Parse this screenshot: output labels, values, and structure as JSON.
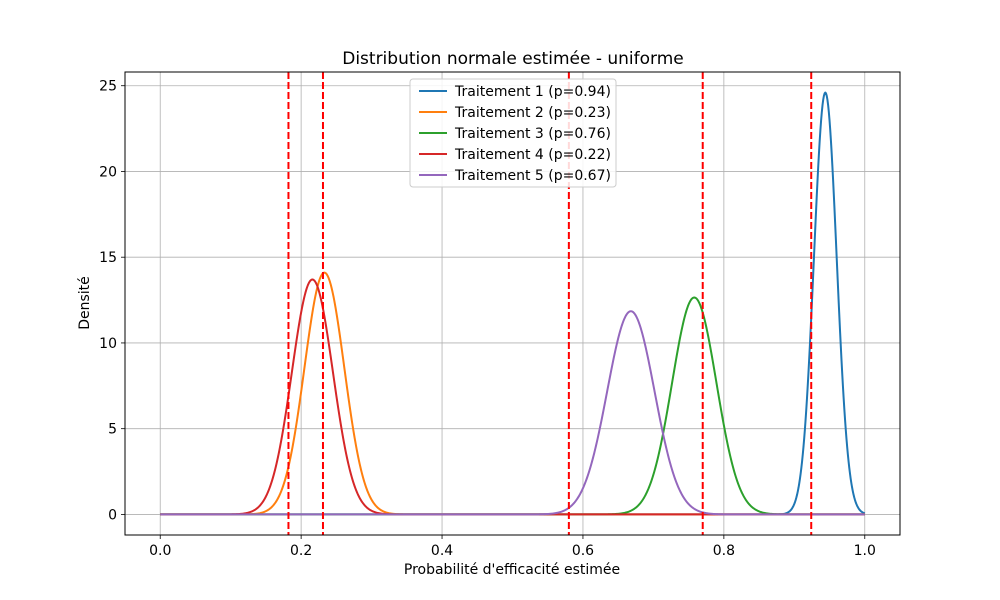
{
  "chart_data": {
    "type": "line",
    "title": "Distribution normale estimée - uniforme",
    "xlabel": "Probabilité d'efficacité estimée",
    "ylabel": "Densité",
    "xlim": [
      -0.05,
      1.05
    ],
    "ylim": [
      -1.2,
      25.8
    ],
    "xticks": [
      0.0,
      0.2,
      0.4,
      0.6,
      0.8,
      1.0
    ],
    "xtick_labels": [
      "0.0",
      "0.2",
      "0.4",
      "0.6",
      "0.8",
      "1.0"
    ],
    "yticks": [
      0,
      5,
      10,
      15,
      20,
      25
    ],
    "ytick_labels": [
      "0",
      "5",
      "10",
      "15",
      "20",
      "25"
    ],
    "grid": true,
    "legend_position": "top-center",
    "series": [
      {
        "name": "Traitement 1 (p=0.94)",
        "color": "#1f77b4",
        "mean": 0.944,
        "sd": 0.0162,
        "peak": 24.6
      },
      {
        "name": "Traitement 2 (p=0.23)",
        "color": "#ff7f0e",
        "mean": 0.233,
        "sd": 0.0283,
        "peak": 14.1
      },
      {
        "name": "Traitement 3 (p=0.76)",
        "color": "#2ca02c",
        "mean": 0.758,
        "sd": 0.0315,
        "peak": 12.65
      },
      {
        "name": "Traitement 4 (p=0.22)",
        "color": "#d62728",
        "mean": 0.216,
        "sd": 0.0291,
        "peak": 13.7
      },
      {
        "name": "Traitement 5 (p=0.67)",
        "color": "#9467bd",
        "mean": 0.668,
        "sd": 0.0336,
        "peak": 11.85
      }
    ],
    "vlines": {
      "color": "#ff0000",
      "style": "dashed",
      "x": [
        0.182,
        0.231,
        0.58,
        0.77,
        0.924
      ]
    }
  }
}
